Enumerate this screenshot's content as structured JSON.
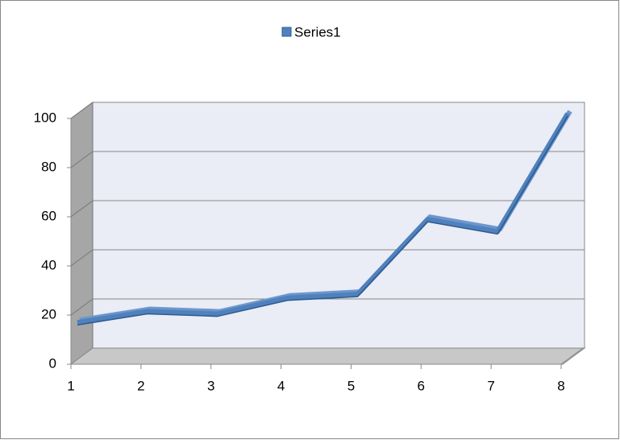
{
  "chart_data": {
    "type": "line3d",
    "x": [
      1,
      2,
      3,
      4,
      5,
      6,
      7,
      8
    ],
    "xlim": [
      1,
      8
    ],
    "xticks": [
      1,
      2,
      3,
      4,
      5,
      6,
      7,
      8
    ],
    "ylim": [
      0,
      100
    ],
    "yticks": [
      0,
      20,
      40,
      60,
      80,
      100
    ],
    "grid": true,
    "legend": "top",
    "series": [
      {
        "name": "Series1",
        "color": "#4f81bd",
        "values": [
          15,
          19.5,
          18.5,
          25,
          26.5,
          57,
          52,
          100
        ]
      }
    ]
  }
}
